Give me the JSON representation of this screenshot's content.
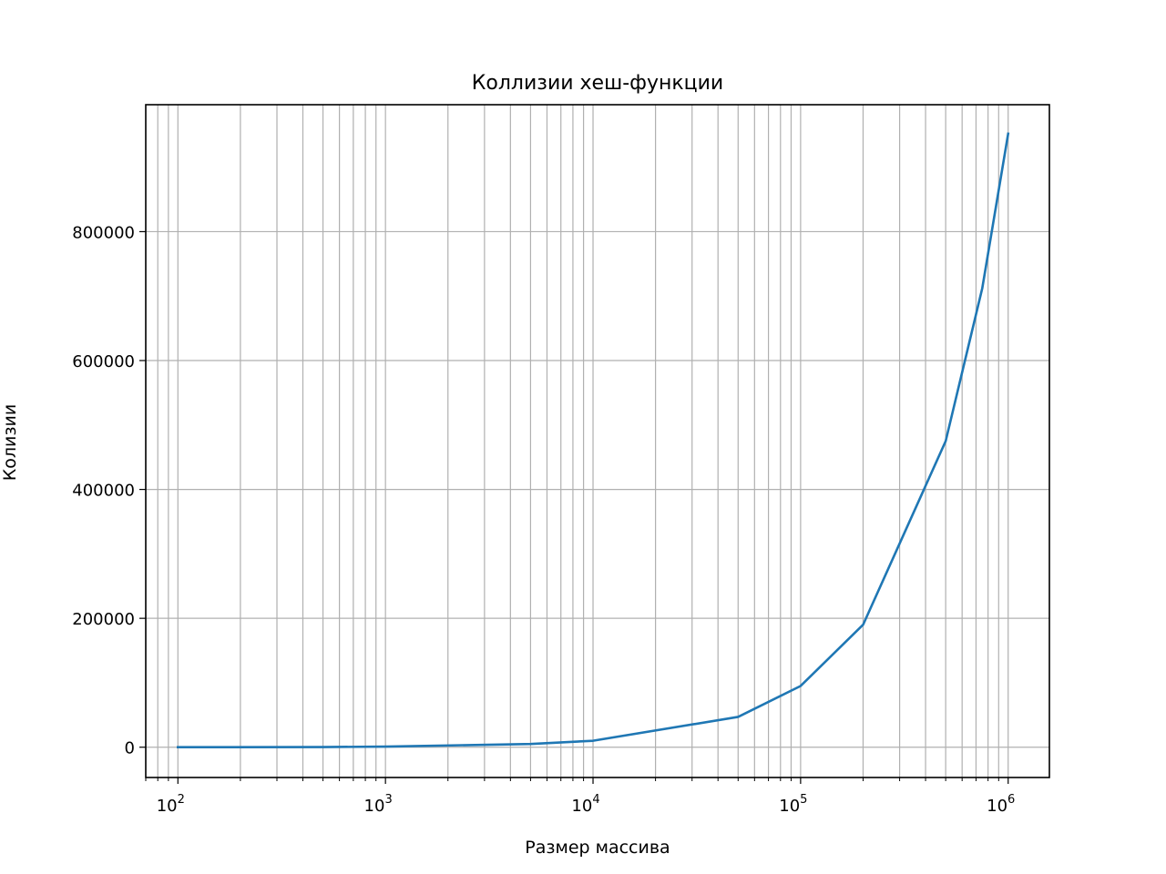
{
  "chart_data": {
    "type": "line",
    "title": "Коллизии хеш-функции",
    "xlabel": "Размер массива",
    "ylabel": "Колизии",
    "x_scale": "log",
    "xlim": [
      70,
      1580000
    ],
    "ylim": [
      -47000,
      997000
    ],
    "grid": true,
    "grid_minor_x": true,
    "x_ticks": [
      {
        "value": 100,
        "base": "10",
        "exp": "2"
      },
      {
        "value": 1000,
        "base": "10",
        "exp": "3"
      },
      {
        "value": 10000,
        "base": "10",
        "exp": "4"
      },
      {
        "value": 100000,
        "base": "10",
        "exp": "5"
      },
      {
        "value": 1000000,
        "base": "10",
        "exp": "6"
      }
    ],
    "y_ticks": [
      {
        "value": 0,
        "label": "0"
      },
      {
        "value": 200000,
        "label": "200000"
      },
      {
        "value": 400000,
        "label": "400000"
      },
      {
        "value": 600000,
        "label": "600000"
      },
      {
        "value": 800000,
        "label": "800000"
      }
    ],
    "series": [
      {
        "color": "#1f77b4",
        "x": [
          100,
          500,
          1000,
          5000,
          10000,
          50000,
          100000,
          200000,
          500000,
          750000,
          1000000
        ],
        "y": [
          0,
          200,
          1000,
          5000,
          10000,
          47000,
          95000,
          190000,
          475000,
          712000,
          952000
        ]
      }
    ]
  }
}
